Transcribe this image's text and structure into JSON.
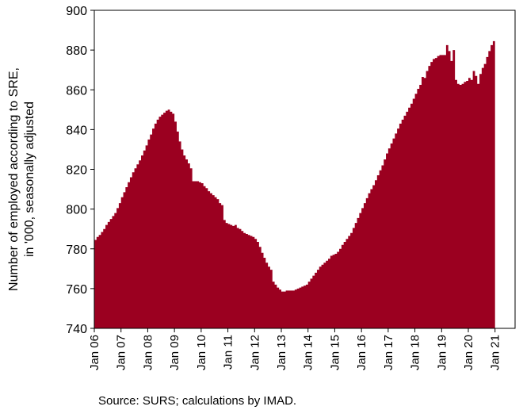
{
  "chart_data": {
    "type": "area",
    "title": "",
    "xlabel": "",
    "ylabel_lines": [
      "Number of employed according to SRE,",
      "in '000, seasonally adjusted"
    ],
    "ylim": [
      740,
      900
    ],
    "yticks": [
      740,
      760,
      780,
      800,
      820,
      840,
      860,
      880,
      900
    ],
    "xlim": [
      0,
      189
    ],
    "xtick_labels": [
      "Jan 06",
      "Jan 07",
      "Jan 08",
      "Jan 09",
      "Jan 10",
      "Jan 11",
      "Jan 12",
      "Jan 13",
      "Jan 14",
      "Jan 15",
      "Jan 16",
      "Jan 17",
      "Jan 18",
      "Jan 19",
      "Jan 20",
      "Jan 21"
    ],
    "x_start": "Jan 06",
    "frequency": "monthly",
    "series": [
      {
        "color": "#9b0020",
        "values": [
          784.5,
          786.0,
          787.0,
          788.5,
          790.0,
          792.0,
          793.5,
          795.0,
          796.5,
          798.0,
          800.5,
          803.0,
          806.0,
          808.5,
          811.0,
          813.5,
          816.0,
          818.5,
          820.5,
          822.5,
          824.5,
          827.0,
          829.5,
          832.0,
          835.0,
          837.5,
          840.5,
          843.0,
          845.0,
          846.5,
          847.5,
          848.5,
          849.5,
          850.0,
          849.0,
          848.0,
          844.0,
          839.0,
          834.0,
          830.0,
          827.0,
          825.0,
          823.0,
          820.5,
          814.0,
          814.0,
          814.0,
          813.5,
          813.0,
          811.5,
          810.5,
          809.0,
          808.0,
          807.0,
          806.0,
          805.0,
          803.0,
          802.0,
          794.5,
          793.0,
          792.5,
          792.0,
          791.5,
          792.0,
          790.5,
          790.0,
          789.0,
          788.0,
          787.5,
          787.0,
          786.5,
          786.0,
          785.0,
          783.5,
          781.0,
          778.0,
          775.5,
          773.0,
          771.0,
          769.5,
          763.5,
          762.0,
          760.5,
          759.5,
          758.5,
          758.5,
          759.0,
          759.0,
          759.0,
          759.0,
          759.5,
          760.0,
          760.5,
          761.0,
          761.5,
          762.0,
          763.5,
          765.0,
          766.5,
          768.0,
          769.5,
          771.0,
          772.0,
          773.0,
          774.0,
          775.0,
          776.5,
          777.0,
          777.5,
          778.5,
          780.0,
          782.0,
          783.5,
          785.0,
          786.5,
          788.0,
          790.5,
          793.0,
          795.5,
          798.0,
          800.5,
          803.0,
          805.5,
          808.0,
          810.0,
          812.0,
          814.5,
          817.0,
          819.5,
          822.0,
          825.0,
          828.0,
          830.5,
          833.0,
          835.5,
          838.0,
          840.5,
          843.0,
          845.0,
          847.0,
          849.0,
          851.0,
          853.0,
          855.5,
          858.0,
          860.5,
          862.5,
          866.5,
          866.0,
          869.5,
          872.0,
          874.0,
          875.5,
          876.0,
          877.0,
          877.5,
          877.5,
          877.5,
          882.5,
          879.5,
          874.5,
          880.0,
          865.0,
          863.0,
          862.5,
          863.0,
          864.0,
          864.5,
          866.0,
          865.0,
          869.5,
          867.0,
          863.0,
          868.0,
          871.0,
          873.0,
          876.5,
          879.5,
          882.5,
          884.5
        ]
      }
    ],
    "grid": false,
    "legend": "none"
  },
  "footer": {
    "source": "Source: SURS; calculations by IMAD."
  }
}
